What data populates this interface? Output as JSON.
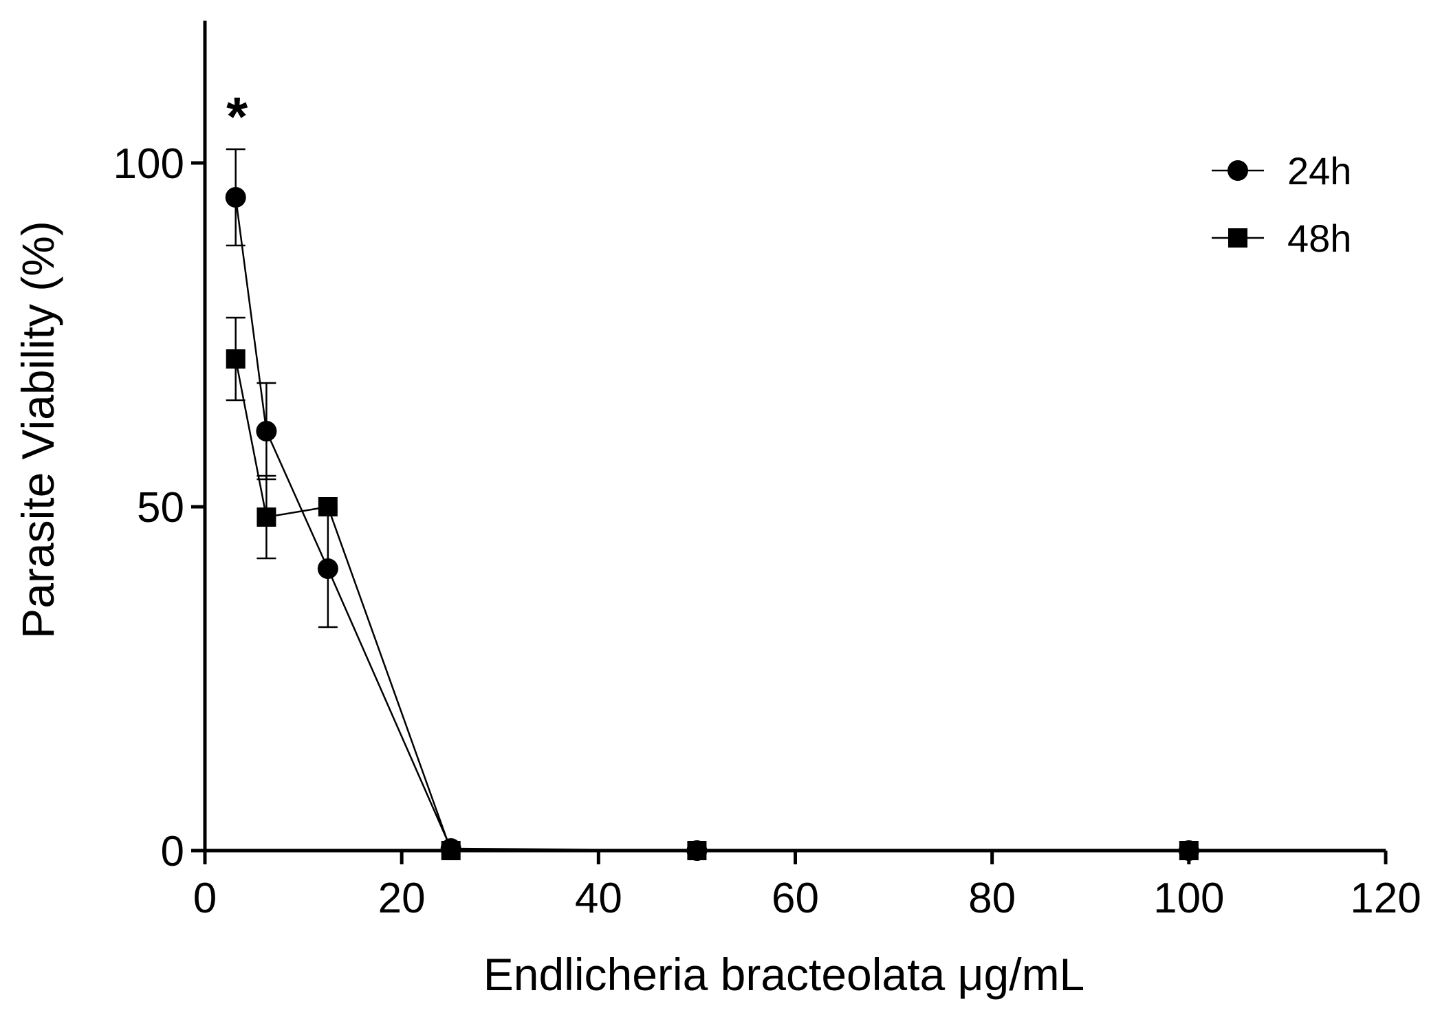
{
  "chart_data": {
    "type": "line",
    "xlabel": "Endlicheria bracteolata  μg/mL",
    "ylabel": "Parasite Viability (%)",
    "xlim": [
      0,
      120
    ],
    "ylim": [
      0,
      120
    ],
    "xticks": [
      0,
      20,
      40,
      60,
      80,
      100,
      120
    ],
    "yticks": [
      0,
      50,
      100
    ],
    "grid": false,
    "legend_position": "top-right",
    "series": [
      {
        "name": "24h",
        "marker": "circle",
        "points": [
          {
            "x": 3.125,
            "y": 95,
            "err": 7
          },
          {
            "x": 6.25,
            "y": 61,
            "err": 7
          },
          {
            "x": 12.5,
            "y": 41,
            "err": 8.5
          },
          {
            "x": 25,
            "y": 0.3,
            "err": 0
          },
          {
            "x": 50,
            "y": 0,
            "err": 0
          },
          {
            "x": 100,
            "y": 0,
            "err": 0
          }
        ]
      },
      {
        "name": "48h",
        "marker": "square",
        "points": [
          {
            "x": 3.125,
            "y": 71.5,
            "err": 6
          },
          {
            "x": 6.25,
            "y": 48.5,
            "err": 6
          },
          {
            "x": 12.5,
            "y": 50,
            "err": 0
          },
          {
            "x": 25,
            "y": 0,
            "err": 0
          },
          {
            "x": 50,
            "y": 0,
            "err": 0
          },
          {
            "x": 100,
            "y": 0,
            "err": 0
          }
        ]
      }
    ],
    "annotations": [
      {
        "text": "*",
        "x": 3.125,
        "y": 107
      }
    ]
  }
}
